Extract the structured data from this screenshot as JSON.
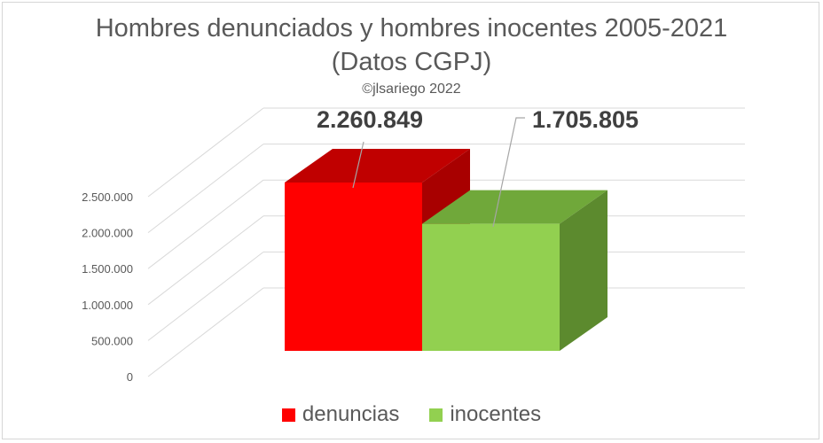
{
  "chart_data": {
    "type": "bar",
    "title": "Hombres denunciados y hombres inocentes 2005-2021",
    "subtitle": "(Datos CGPJ)",
    "credit": "©jlsariego 2022",
    "categories": [
      "denuncias",
      "inocentes"
    ],
    "values": [
      2260849,
      1705805
    ],
    "value_labels": [
      "2.260.849",
      "1.705.805"
    ],
    "ylim": [
      0,
      2500000
    ],
    "yticks": [
      0,
      500000,
      1000000,
      1500000,
      2000000,
      2500000
    ],
    "ytick_labels": [
      "0",
      "500.000",
      "1.000.000",
      "1.500.000",
      "2.000.000",
      "2.500.000"
    ],
    "grid": true,
    "legend": "bottom",
    "colors": {
      "denuncias": {
        "front": "#ff0000",
        "top": "#c00000",
        "side": "#a80000"
      },
      "inocentes": {
        "front": "#92d050",
        "top": "#70a83a",
        "side": "#5c8a2e"
      }
    }
  },
  "legend": {
    "items": [
      {
        "label": "denuncias",
        "color": "#ff0000"
      },
      {
        "label": "inocentes",
        "color": "#92d050"
      }
    ]
  }
}
